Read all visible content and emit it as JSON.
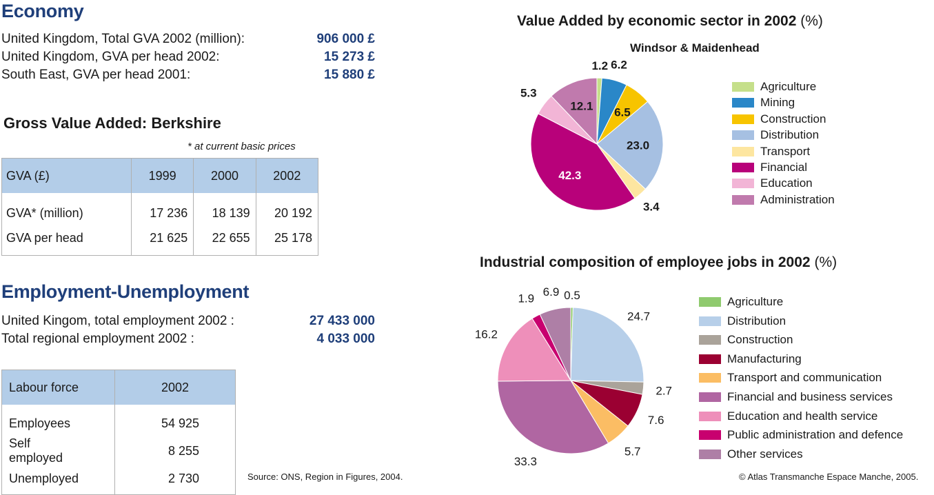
{
  "economy": {
    "heading": "Economy",
    "rows": [
      {
        "label": "United Kingdom, Total GVA 2002 (million):",
        "value": "906 000 £"
      },
      {
        "label": "United Kingdom, GVA per head 2002:",
        "value": "15 273 £"
      },
      {
        "label": "South East, GVA per head 2001:",
        "value": "15 880 £"
      }
    ]
  },
  "gva": {
    "heading": "Gross Value Added: Berkshire",
    "note": "* at current basic prices",
    "header": [
      "GVA (£)",
      "1999",
      "2000",
      "2002"
    ],
    "rows": [
      [
        "GVA* (million)",
        "17 236",
        "18 139",
        "20 192"
      ],
      [
        "GVA per head",
        "21 625",
        "22 655",
        "25 178"
      ]
    ]
  },
  "employment": {
    "heading": "Employment-Unemployment",
    "rows": [
      {
        "label": "United Kingom, total employment 2002 :",
        "value": "27 433 000"
      },
      {
        "label": "Total regional employment 2002 :",
        "value": "4 033 000"
      }
    ]
  },
  "labour": {
    "header": [
      "Labour force",
      "2002"
    ],
    "rows": [
      [
        "Employees",
        "54 925"
      ],
      [
        "Self employed",
        "8 255"
      ],
      [
        "Unemployed",
        "2 730"
      ]
    ]
  },
  "source": "Source: ONS, Region in Figures, 2004.",
  "copyright": "© Atlas Transmanche Espace Manche, 2005.",
  "chart_data": [
    {
      "type": "pie",
      "title": "Value Added by economic sector in 2002",
      "title_unit": "(%)",
      "subtitle": "Windsor & Maidenhead",
      "legend_position": "right",
      "start_angle_deg": 0,
      "series": [
        {
          "name": "Agriculture",
          "value": 1.2,
          "label": "1.2",
          "color": "#c5df8a"
        },
        {
          "name": "Mining",
          "value": 6.2,
          "label": "6.2",
          "color": "#2a87c8"
        },
        {
          "name": "Construction",
          "value": 6.5,
          "label": "6.5",
          "color": "#f7c400"
        },
        {
          "name": "Distribution",
          "value": 23.0,
          "label": "23.0",
          "color": "#a6c0e2"
        },
        {
          "name": "Transport",
          "value": 3.4,
          "label": "3.4",
          "color": "#fde6a0"
        },
        {
          "name": "Financial",
          "value": 42.3,
          "label": "42.3",
          "color": "#b8017a"
        },
        {
          "name": "Education",
          "value": 5.3,
          "label": "5.3",
          "color": "#f2b5d6"
        },
        {
          "name": "Administration",
          "value": 12.1,
          "label": "12.1",
          "color": "#c07aad"
        }
      ]
    },
    {
      "type": "pie",
      "title": "Industrial composition of employee jobs in 2002",
      "title_unit": "(%)",
      "legend_position": "right",
      "start_angle_deg": 0,
      "series": [
        {
          "name": "Agriculture",
          "value": 0.5,
          "label": "0.5",
          "color": "#8fca6e"
        },
        {
          "name": "Distribution",
          "value": 24.7,
          "label": "24.7",
          "color": "#b7cfe9"
        },
        {
          "name": "Construction",
          "value": 2.7,
          "label": "2.7",
          "color": "#aaa39a"
        },
        {
          "name": "Manufacturing",
          "value": 7.6,
          "label": "7.6",
          "color": "#9b0032"
        },
        {
          "name": "Transport and communication",
          "value": 5.7,
          "label": "5.7",
          "color": "#fbbd64"
        },
        {
          "name": "Financial and business services",
          "value": 33.3,
          "label": "33.3",
          "color": "#b066a2"
        },
        {
          "name": "Education and health service",
          "value": 16.2,
          "label": "16.2",
          "color": "#ee8fba"
        },
        {
          "name": "Public administration and defence",
          "value": 1.9,
          "label": "1.9",
          "color": "#c8006f"
        },
        {
          "name": "Other services",
          "value": 6.9,
          "label": "6.9",
          "color": "#ae7fa6"
        }
      ]
    }
  ]
}
